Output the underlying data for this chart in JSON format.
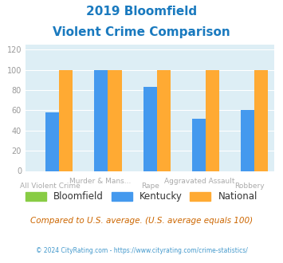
{
  "title_line1": "2019 Bloomfield",
  "title_line2": "Violent Crime Comparison",
  "categories": [
    "All Violent Crime",
    "Murder & Mans...",
    "Rape",
    "Aggravated Assault",
    "Robbery"
  ],
  "series": {
    "Bloomfield": [
      0,
      0,
      0,
      0,
      0
    ],
    "Kentucky": [
      58,
      100,
      83,
      52,
      60
    ],
    "National": [
      100,
      100,
      100,
      100,
      100
    ]
  },
  "colors": {
    "Bloomfield": "#88cc44",
    "Kentucky": "#4499ee",
    "National": "#ffaa33"
  },
  "ylim": [
    0,
    125
  ],
  "yticks": [
    0,
    20,
    40,
    60,
    80,
    100,
    120
  ],
  "background_color": "#ffffff",
  "plot_bg": "#ddeef5",
  "title_color": "#1a7abf",
  "note_text": "Compared to U.S. average. (U.S. average equals 100)",
  "note_color": "#cc6600",
  "footer_text": "© 2024 CityRating.com - https://www.cityrating.com/crime-statistics/",
  "footer_color": "#4499cc",
  "bar_width": 0.28
}
